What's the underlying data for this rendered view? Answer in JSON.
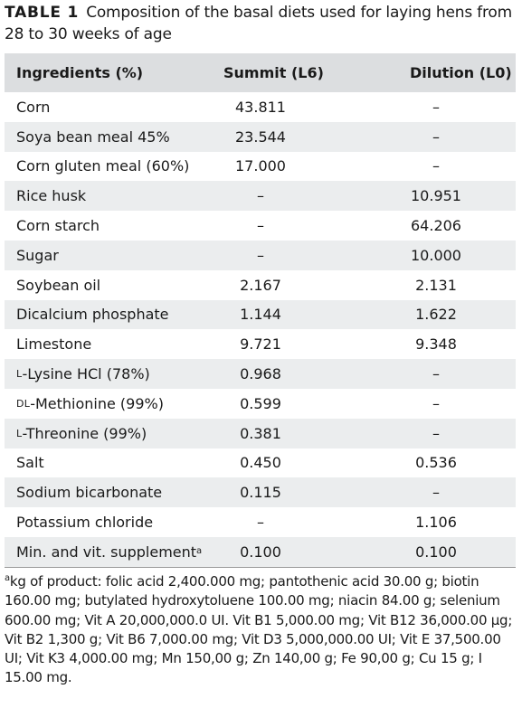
{
  "caption": {
    "label": "TABLE 1",
    "text": "Composition of the basal diets used for laying hens from 28 to 30 weeks of age"
  },
  "table": {
    "headers": [
      "Ingredients (%)",
      "Summit (L6)",
      "Dilution (L0)"
    ],
    "rows": [
      {
        "pre": "",
        "name": "Corn",
        "sup": "",
        "summit": "43.811",
        "dilution": "–"
      },
      {
        "pre": "",
        "name": "Soya bean meal 45%",
        "sup": "",
        "summit": "23.544",
        "dilution": "–"
      },
      {
        "pre": "",
        "name": "Corn gluten meal (60%)",
        "sup": "",
        "summit": "17.000",
        "dilution": "–"
      },
      {
        "pre": "",
        "name": "Rice husk",
        "sup": "",
        "summit": "–",
        "dilution": "10.951"
      },
      {
        "pre": "",
        "name": "Corn starch",
        "sup": "",
        "summit": "–",
        "dilution": "64.206"
      },
      {
        "pre": "",
        "name": "Sugar",
        "sup": "",
        "summit": "–",
        "dilution": "10.000"
      },
      {
        "pre": "",
        "name": "Soybean oil",
        "sup": "",
        "summit": "2.167",
        "dilution": "2.131"
      },
      {
        "pre": "",
        "name": "Dicalcium phosphate",
        "sup": "",
        "summit": "1.144",
        "dilution": "1.622"
      },
      {
        "pre": "",
        "name": "Limestone",
        "sup": "",
        "summit": "9.721",
        "dilution": "9.348"
      },
      {
        "pre": "L",
        "name": "-Lysine HCl (78%)",
        "sup": "",
        "summit": "0.968",
        "dilution": "–"
      },
      {
        "pre": "DL",
        "name": "-Methionine (99%)",
        "sup": "",
        "summit": "0.599",
        "dilution": "–"
      },
      {
        "pre": "L",
        "name": "-Threonine (99%)",
        "sup": "",
        "summit": "0.381",
        "dilution": "–"
      },
      {
        "pre": "",
        "name": "Salt",
        "sup": "",
        "summit": "0.450",
        "dilution": "0.536"
      },
      {
        "pre": "",
        "name": "Sodium bicarbonate",
        "sup": "",
        "summit": "0.115",
        "dilution": "–"
      },
      {
        "pre": "",
        "name": "Potassium chloride",
        "sup": "",
        "summit": "–",
        "dilution": "1.106"
      },
      {
        "pre": "",
        "name": "Min. and vit. supplement",
        "sup": "a",
        "summit": "0.100",
        "dilution": "0.100"
      }
    ]
  },
  "footnote": {
    "marker": "a",
    "text": "kg of product: folic acid 2,400.000 mg; pantothenic acid 30.00 g; biotin 160.00 mg; butylated hydroxytoluene 100.00 mg; niacin 84.00 g; selenium 600.00 mg; Vit A 20,000,000.0 UI. Vit B1 5,000.00 mg; Vit B12 36,000.00 µg; Vit B2 1,300 g; Vit B6 7,000.00 mg; Vit D3 5,000,000.00 UI; Vit E 37,500.00 UI; Vit K3 4,000.00 mg; Mn 150,00 g; Zn 140,00 g; Fe 90,00 g; Cu 15 g; I 15.00 mg."
  }
}
